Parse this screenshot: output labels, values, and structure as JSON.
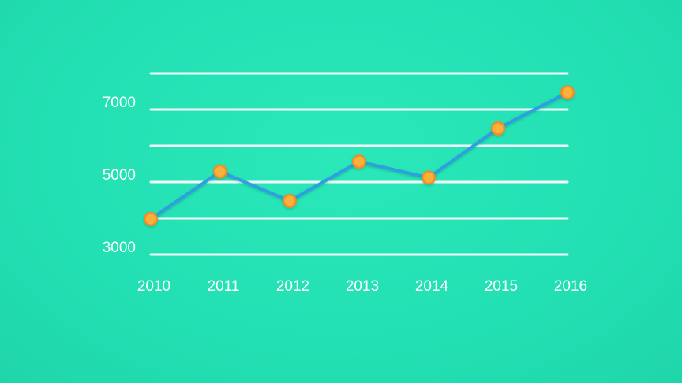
{
  "chart_data": {
    "type": "line",
    "title": "",
    "xlabel": "",
    "ylabel": "",
    "x": [
      "2010",
      "2011",
      "2012",
      "2013",
      "2014",
      "2015",
      "2016"
    ],
    "series": [
      {
        "values": [
          3980,
          5290,
          4480,
          5560,
          5120,
          6480,
          7470
        ]
      }
    ],
    "ylim": [
      3000,
      8000
    ],
    "y_ticks": [
      "3000",
      "5000",
      "7000"
    ],
    "grid": true,
    "legend": "none",
    "colors": {
      "background": "#22e0b3",
      "grid": "#ffffff",
      "line": "#2d9fe0",
      "marker_fill": "#fbb03b",
      "marker_stroke": "#f28c28"
    }
  }
}
